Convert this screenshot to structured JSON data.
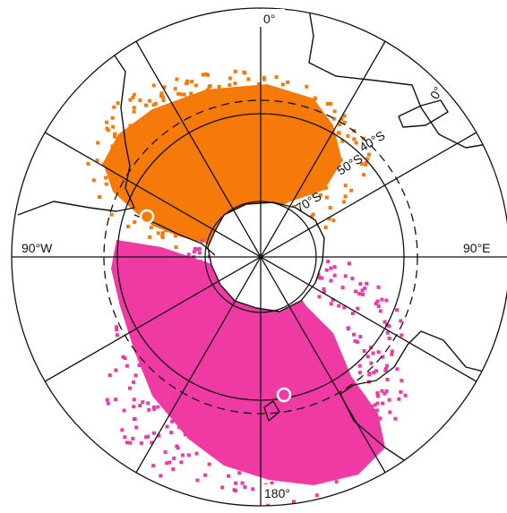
{
  "labels": {
    "meridian_top": "0°",
    "meridian_upper_right": "0°",
    "parallel_40": "40°S",
    "parallel_50": "50°S",
    "parallel_70": "70°S",
    "meridian_left": "90°W",
    "meridian_right": "90°E",
    "meridian_bottom": "180°"
  }
}
